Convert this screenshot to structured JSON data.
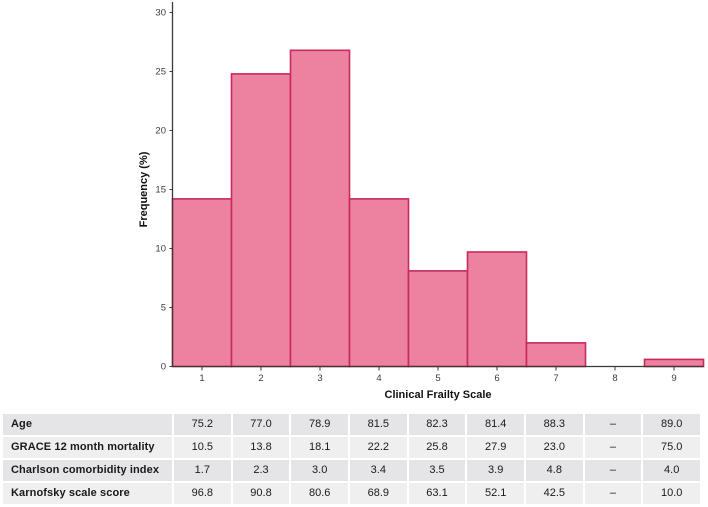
{
  "figure": {
    "background": "#ffffff",
    "axis_color": "#3a3a3a",
    "tick_label_color": "#3d3d3d",
    "title_color": "#111111"
  },
  "chart_data": {
    "type": "bar",
    "variant": "histogram",
    "title": "",
    "xlabel": "Clinical Frailty Scale",
    "ylabel": "Frequency (%)",
    "categories": [
      "1",
      "2",
      "3",
      "4",
      "5",
      "6",
      "7",
      "8",
      "9"
    ],
    "values": [
      14.2,
      24.8,
      26.8,
      14.2,
      8.1,
      9.7,
      2.0,
      0,
      0.6
    ],
    "ylim": [
      0,
      30
    ],
    "yticks": [
      0,
      5,
      10,
      15,
      20,
      25,
      30
    ],
    "grid": false,
    "legend": false,
    "bar_fill": "#ec82a0",
    "bar_stroke": "#c9295c"
  },
  "table": {
    "rows": [
      {
        "label": "Age",
        "values": [
          "75.2",
          "77.0",
          "78.9",
          "81.5",
          "82.3",
          "81.4",
          "88.3",
          "–",
          "89.0"
        ]
      },
      {
        "label": "GRACE 12 month mortality",
        "values": [
          "10.5",
          "13.8",
          "18.1",
          "22.2",
          "25.8",
          "27.9",
          "23.0",
          "–",
          "75.0"
        ]
      },
      {
        "label": "Charlson comorbidity index",
        "values": [
          "1.7",
          "2.3",
          "3.0",
          "3.4",
          "3.5",
          "3.9",
          "4.8",
          "–",
          "4.0"
        ]
      },
      {
        "label": "Karnofsky scale score",
        "values": [
          "96.8",
          "90.8",
          "80.6",
          "68.9",
          "63.1",
          "52.1",
          "42.5",
          "–",
          "10.0"
        ]
      }
    ],
    "row_color_odd": "#e5e5e7",
    "row_color_even": "#efefef"
  }
}
